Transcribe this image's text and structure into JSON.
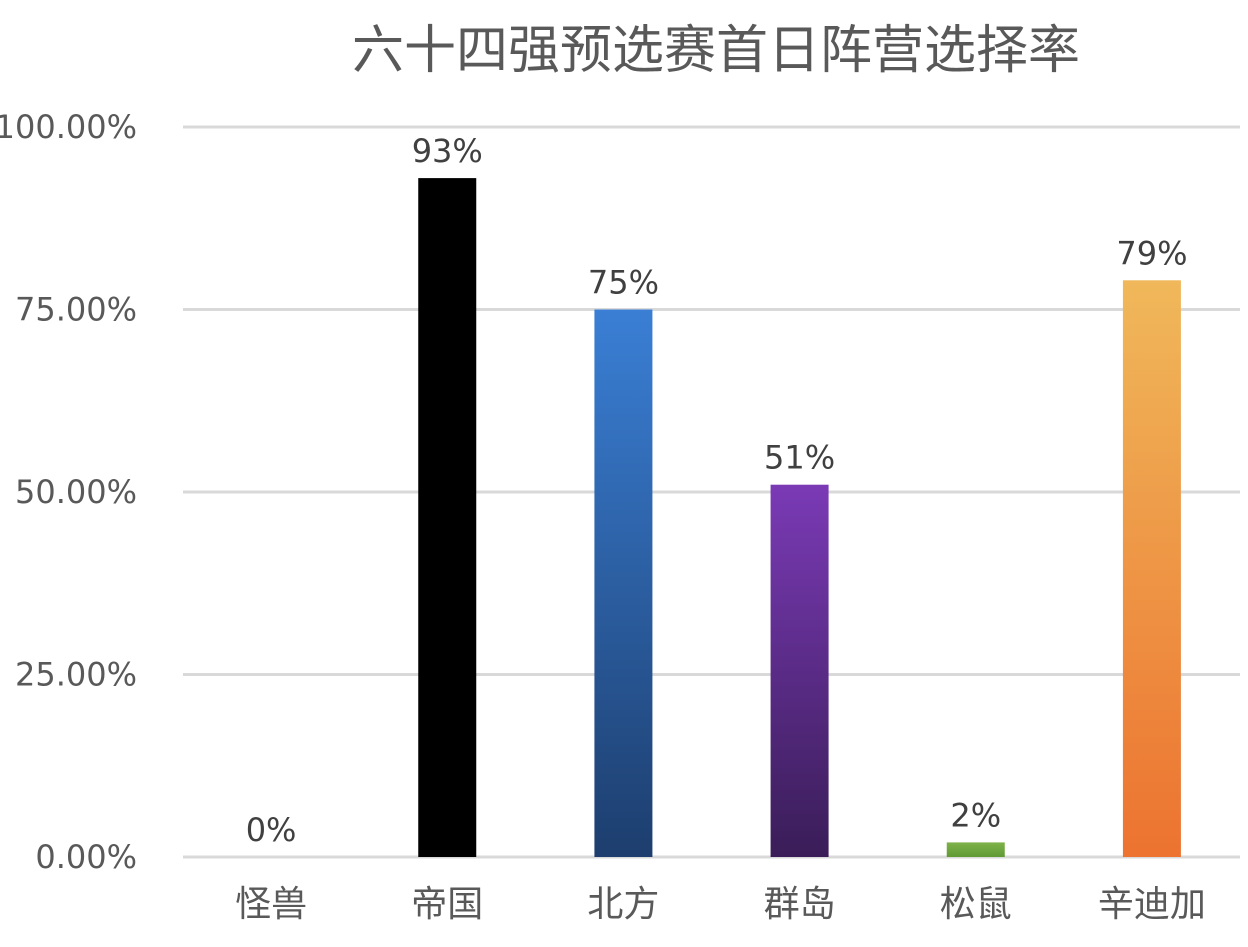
{
  "chart_data": {
    "type": "bar",
    "title": "六十四强预选赛首日阵营选择率",
    "categories": [
      "怪兽",
      "帝国",
      "北方",
      "群岛",
      "松鼠",
      "辛迪加"
    ],
    "values": [
      0,
      93,
      75,
      51,
      2,
      79
    ],
    "value_labels": [
      "0%",
      "93%",
      "75%",
      "51%",
      "2%",
      "79%"
    ],
    "ylim": [
      0,
      100
    ],
    "yticks": [
      0,
      25,
      50,
      75,
      100
    ],
    "ytick_labels": [
      "0.00%",
      "25.00%",
      "50.00%",
      "75.00%",
      "100.00%"
    ],
    "grid": true,
    "legend": "none",
    "bar_colors": [
      {
        "top": "#7a7a7a",
        "bottom": "#5a5a5a"
      },
      {
        "top": "#000000",
        "bottom": "#000000"
      },
      {
        "top": "#3a7fd5",
        "bottom": "#1d3e6e"
      },
      {
        "top": "#7a3ab5",
        "bottom": "#3a1d58"
      },
      {
        "top": "#7fb24a",
        "bottom": "#5f9a34"
      },
      {
        "top": "#f0b85a",
        "bottom": "#ec7330"
      }
    ]
  }
}
